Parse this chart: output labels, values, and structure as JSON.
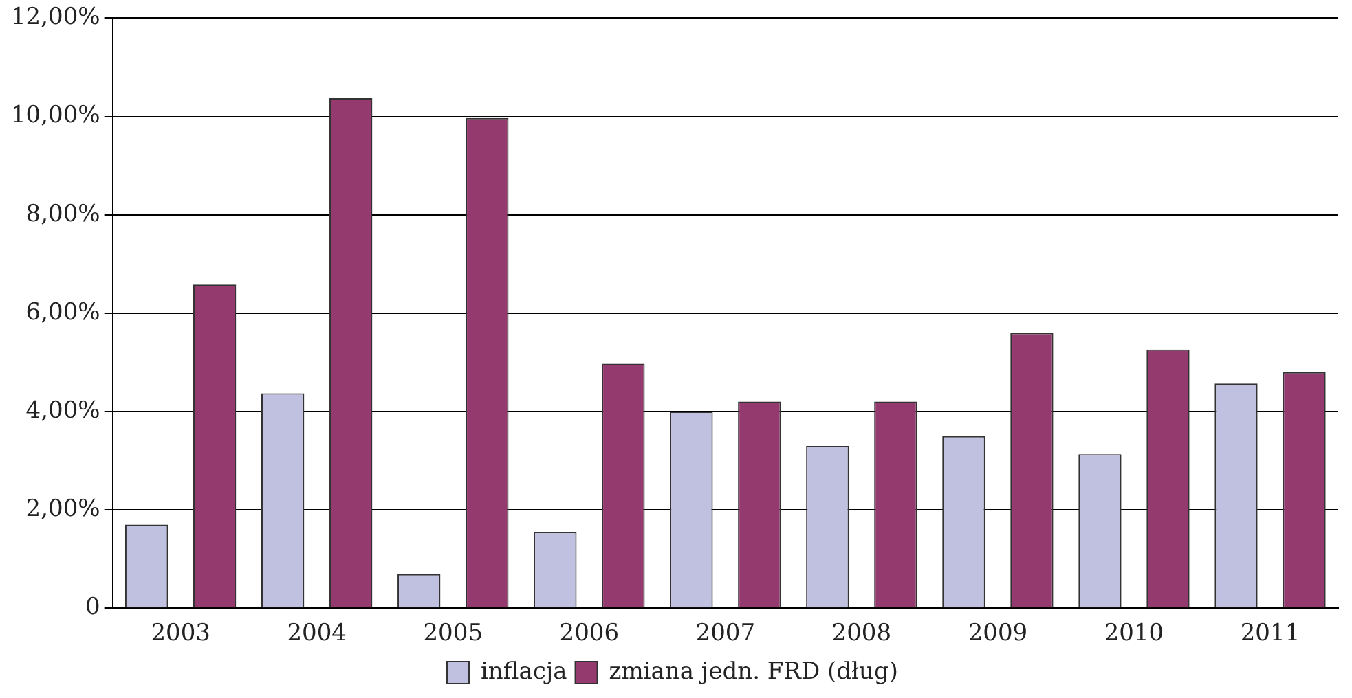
{
  "chart_data": {
    "type": "bar",
    "categories": [
      "2003",
      "2004",
      "2005",
      "2006",
      "2007",
      "2008",
      "2009",
      "2010",
      "2011"
    ],
    "series": [
      {
        "name": "inflacja",
        "color": "#c0c0e0",
        "values": [
          1.7,
          4.37,
          0.69,
          1.55,
          4.0,
          3.3,
          3.5,
          3.13,
          4.57
        ]
      },
      {
        "name": "zmiana jedn. FRD (dług)",
        "color": "#953a6e",
        "values": [
          6.58,
          10.37,
          9.97,
          4.97,
          4.2,
          4.2,
          5.6,
          5.26,
          4.8
        ]
      }
    ],
    "ylim": [
      0,
      12
    ],
    "yticks": [
      {
        "value": 0,
        "label": "0"
      },
      {
        "value": 2,
        "label": "2,00%"
      },
      {
        "value": 4,
        "label": "4,00%"
      },
      {
        "value": 6,
        "label": "6,00%"
      },
      {
        "value": 8,
        "label": "8,00%"
      },
      {
        "value": 10,
        "label": "10,00%"
      },
      {
        "value": 12,
        "label": "12,00%"
      }
    ],
    "grid": "y",
    "legend": "bottom"
  }
}
